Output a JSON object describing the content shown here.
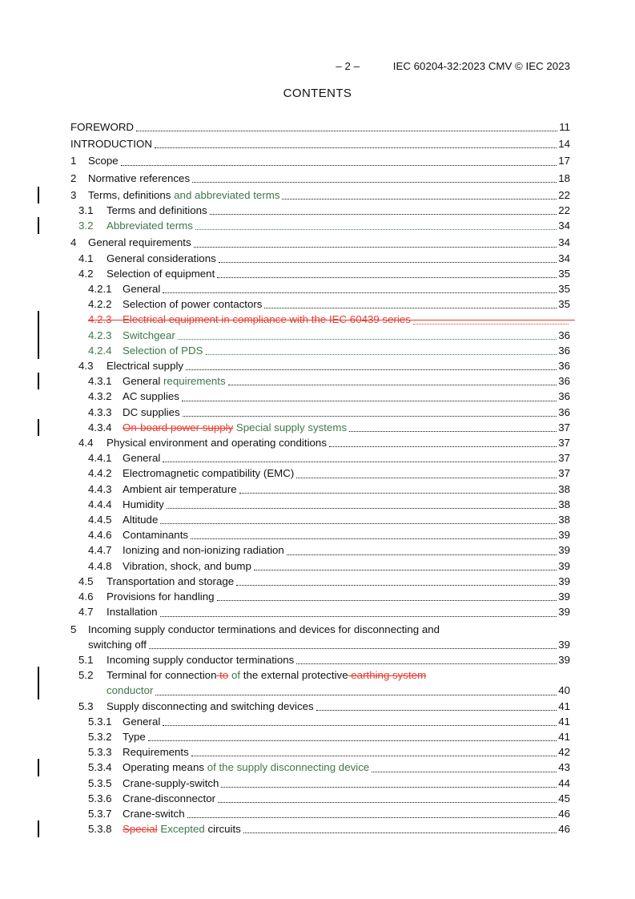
{
  "header": {
    "page_marker": "– 2 –",
    "doc_ref": "IEC 60204-32:2023 CMV © IEC 2023"
  },
  "title": "CONTENTS",
  "colors": {
    "inserted_text": "#3e7747",
    "deleted_text": "#e73b2f",
    "body_text": "#111111",
    "change_bar": "#000000"
  },
  "toc_rows": [
    {
      "level": "l0",
      "num": "",
      "segs": [
        {
          "t": "FOREWORD"
        }
      ],
      "leader": "norm",
      "page": "11",
      "top": true
    },
    {
      "level": "l0",
      "num": "",
      "segs": [
        {
          "t": "INTRODUCTION"
        }
      ],
      "leader": "norm",
      "page": "14",
      "top": true
    },
    {
      "level": "l0",
      "num": "1",
      "segs": [
        {
          "t": "Scope"
        }
      ],
      "leader": "norm",
      "page": "17",
      "top": true
    },
    {
      "level": "l0",
      "num": "2",
      "segs": [
        {
          "t": "Normative references"
        }
      ],
      "leader": "norm",
      "page": "18",
      "top": true
    },
    {
      "level": "l0",
      "num": "3",
      "segs": [
        {
          "t": "Terms, definitions"
        },
        {
          "t": " and abbreviated terms",
          "s": "add"
        }
      ],
      "leader": "norm",
      "page": "22",
      "top": true,
      "bar": true
    },
    {
      "level": "l1",
      "num": "3.1",
      "segs": [
        {
          "t": "Terms and definitions"
        }
      ],
      "leader": "norm",
      "page": "22"
    },
    {
      "level": "l1",
      "num": "3.2",
      "numStyle": "add",
      "segs": [
        {
          "t": "Abbreviated terms",
          "s": "add"
        }
      ],
      "leader": "add",
      "page": "34",
      "bar": true
    },
    {
      "level": "l0",
      "num": "4",
      "segs": [
        {
          "t": "General requirements"
        }
      ],
      "leader": "norm",
      "page": "34",
      "top": true
    },
    {
      "level": "l1",
      "num": "4.1",
      "segs": [
        {
          "t": "General considerations"
        }
      ],
      "leader": "norm",
      "page": "34"
    },
    {
      "level": "l1",
      "num": "4.2",
      "segs": [
        {
          "t": "Selection of equipment"
        }
      ],
      "leader": "norm",
      "page": "35"
    },
    {
      "level": "l2",
      "num": "4.2.1",
      "segs": [
        {
          "t": "General"
        }
      ],
      "leader": "norm",
      "page": "35"
    },
    {
      "level": "l2",
      "num": "4.2.2",
      "segs": [
        {
          "t": "Selection of power contactors"
        }
      ],
      "leader": "norm",
      "page": "35"
    },
    {
      "level": "l2",
      "num": "4.2.3",
      "numStyle": "delplain",
      "segs": [
        {
          "t": "Electrical equipment in compliance with the IEC 60439 series",
          "s": "delplain"
        }
      ],
      "leader": "del",
      "page": "",
      "bar": true,
      "struck": true
    },
    {
      "level": "l2",
      "num": "4.2.3",
      "numStyle": "add",
      "segs": [
        {
          "t": "Switchgear",
          "s": "add"
        }
      ],
      "leader": "add",
      "page": "36",
      "bar": true
    },
    {
      "level": "l2",
      "num": "4.2.4",
      "numStyle": "add",
      "segs": [
        {
          "t": "Selection of PDS",
          "s": "add"
        }
      ],
      "leader": "add",
      "page": "36",
      "bar": true
    },
    {
      "level": "l1",
      "num": "4.3",
      "segs": [
        {
          "t": "Electrical supply"
        }
      ],
      "leader": "norm",
      "page": "36"
    },
    {
      "level": "l2",
      "num": "4.3.1",
      "segs": [
        {
          "t": "General"
        },
        {
          "t": " requirements",
          "s": "add"
        }
      ],
      "leader": "norm",
      "page": "36",
      "bar": true
    },
    {
      "level": "l2",
      "num": "4.3.2",
      "segs": [
        {
          "t": "AC supplies"
        }
      ],
      "leader": "norm",
      "page": "36"
    },
    {
      "level": "l2",
      "num": "4.3.3",
      "segs": [
        {
          "t": "DC supplies"
        }
      ],
      "leader": "norm",
      "page": "36"
    },
    {
      "level": "l2",
      "num": "4.3.4",
      "segs": [
        {
          "t": "On-board power supply",
          "s": "del"
        },
        {
          "t": " Special supply systems",
          "s": "add"
        }
      ],
      "leader": "norm",
      "page": "37",
      "bar": true
    },
    {
      "level": "l1",
      "num": "4.4",
      "segs": [
        {
          "t": "Physical environment and operating conditions"
        }
      ],
      "leader": "norm",
      "page": "37"
    },
    {
      "level": "l2",
      "num": "4.4.1",
      "segs": [
        {
          "t": "General"
        }
      ],
      "leader": "norm",
      "page": "37"
    },
    {
      "level": "l2",
      "num": "4.4.2",
      "segs": [
        {
          "t": "Electromagnetic compatibility (EMC)"
        }
      ],
      "leader": "norm",
      "page": "37"
    },
    {
      "level": "l2",
      "num": "4.4.3",
      "segs": [
        {
          "t": "Ambient air temperature"
        }
      ],
      "leader": "norm",
      "page": "38"
    },
    {
      "level": "l2",
      "num": "4.4.4",
      "segs": [
        {
          "t": "Humidity"
        }
      ],
      "leader": "norm",
      "page": "38"
    },
    {
      "level": "l2",
      "num": "4.4.5",
      "segs": [
        {
          "t": "Altitude"
        }
      ],
      "leader": "norm",
      "page": "38"
    },
    {
      "level": "l2",
      "num": "4.4.6",
      "segs": [
        {
          "t": "Contaminants"
        }
      ],
      "leader": "norm",
      "page": "39"
    },
    {
      "level": "l2",
      "num": "4.4.7",
      "segs": [
        {
          "t": "Ionizing and non-ionizing radiation"
        }
      ],
      "leader": "norm",
      "page": "39"
    },
    {
      "level": "l2",
      "num": "4.4.8",
      "segs": [
        {
          "t": "Vibration, shock, and bump"
        }
      ],
      "leader": "norm",
      "page": "39"
    },
    {
      "level": "l1",
      "num": "4.5",
      "segs": [
        {
          "t": "Transportation and storage"
        }
      ],
      "leader": "norm",
      "page": "39"
    },
    {
      "level": "l1",
      "num": "4.6",
      "segs": [
        {
          "t": "Provisions for handling"
        }
      ],
      "leader": "norm",
      "page": "39"
    },
    {
      "level": "l1",
      "num": "4.7",
      "segs": [
        {
          "t": "Installation"
        }
      ],
      "leader": "norm",
      "page": "39"
    },
    {
      "level": "l0",
      "num": "5",
      "segs": [
        {
          "t": "Incoming supply conductor terminations and devices for disconnecting and"
        }
      ],
      "leader": "none",
      "page": "",
      "top": true
    },
    {
      "level": "c0",
      "num": "",
      "segs": [
        {
          "t": "switching off"
        }
      ],
      "leader": "norm",
      "page": "39"
    },
    {
      "level": "l1",
      "num": "5.1",
      "segs": [
        {
          "t": "Incoming supply conductor terminations"
        }
      ],
      "leader": "norm",
      "page": "39"
    },
    {
      "level": "l1",
      "num": "5.2",
      "segs": [
        {
          "t": "Terminal for connection"
        },
        {
          "t": " to",
          "s": "del"
        },
        {
          "t": " "
        },
        {
          "t": "of",
          "s": "add"
        },
        {
          "t": " the external protective"
        },
        {
          "t": " earthing system",
          "s": "del"
        }
      ],
      "leader": "none",
      "page": "",
      "bar": true
    },
    {
      "level": "c1",
      "num": "",
      "segs": [
        {
          "t": "conductor",
          "s": "add"
        }
      ],
      "leader": "norm",
      "page": "40",
      "bar": true
    },
    {
      "level": "l1",
      "num": "5.3",
      "segs": [
        {
          "t": "Supply disconnecting and switching devices"
        }
      ],
      "leader": "norm",
      "page": "41"
    },
    {
      "level": "l2",
      "num": "5.3.1",
      "segs": [
        {
          "t": "General"
        }
      ],
      "leader": "norm",
      "page": "41"
    },
    {
      "level": "l2",
      "num": "5.3.2",
      "segs": [
        {
          "t": "Type"
        }
      ],
      "leader": "norm",
      "page": "41"
    },
    {
      "level": "l2",
      "num": "5.3.3",
      "segs": [
        {
          "t": "Requirements"
        }
      ],
      "leader": "norm",
      "page": "42"
    },
    {
      "level": "l2",
      "num": "5.3.4",
      "segs": [
        {
          "t": "Operating means"
        },
        {
          "t": " of the supply disconnecting device",
          "s": "add"
        }
      ],
      "leader": "norm",
      "page": "43",
      "bar": true
    },
    {
      "level": "l2",
      "num": "5.3.5",
      "segs": [
        {
          "t": "Crane-supply-switch"
        }
      ],
      "leader": "norm",
      "page": "44"
    },
    {
      "level": "l2",
      "num": "5.3.6",
      "segs": [
        {
          "t": "Crane-disconnector"
        }
      ],
      "leader": "norm",
      "page": "45"
    },
    {
      "level": "l2",
      "num": "5.3.7",
      "segs": [
        {
          "t": "Crane-switch"
        }
      ],
      "leader": "norm",
      "page": "46"
    },
    {
      "level": "l2",
      "num": "5.3.8",
      "segs": [
        {
          "t": "Special",
          "s": "del"
        },
        {
          "t": " Excepted",
          "s": "add"
        },
        {
          "t": " circuits"
        }
      ],
      "leader": "norm",
      "page": "46",
      "bar": true
    }
  ]
}
